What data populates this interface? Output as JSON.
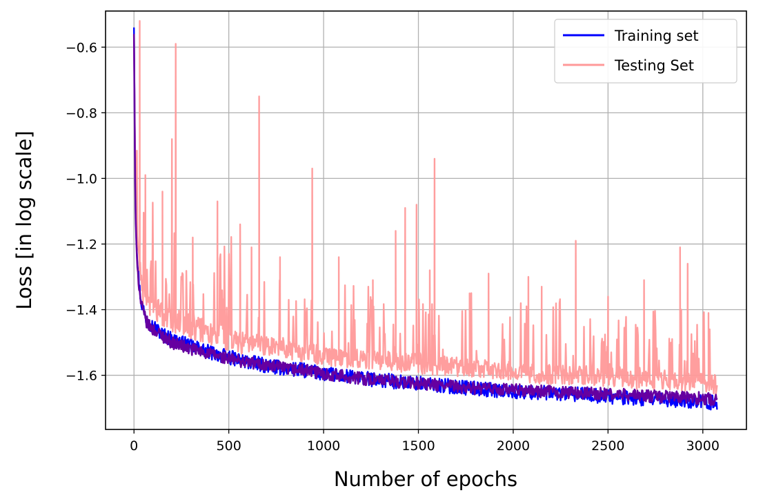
{
  "chart_data": {
    "type": "line",
    "title": "",
    "xlabel": "Number of epochs",
    "ylabel": "Loss [in log scale]",
    "xlim": [
      -150,
      3230
    ],
    "ylim": [
      -1.765,
      -0.49
    ],
    "x_ticks": [
      0,
      500,
      1000,
      1500,
      2000,
      2500,
      3000
    ],
    "y_ticks": [
      -0.6,
      -0.8,
      -1.0,
      -1.2,
      -1.4,
      -1.6
    ],
    "x_tick_labels": [
      "0",
      "500",
      "1000",
      "1500",
      "2000",
      "2500",
      "3000"
    ],
    "y_tick_labels": [
      "−0.6",
      "−0.8",
      "−1.0",
      "−1.2",
      "−1.4",
      "−1.6"
    ],
    "grid": true,
    "legend_position": "top-right",
    "epochs": [
      0,
      3075
    ],
    "series": [
      {
        "name": "Training set",
        "color": "#0000ff",
        "x": [
          0,
          5,
          10,
          20,
          30,
          40,
          60,
          80,
          100,
          150,
          200,
          300,
          400,
          500,
          600,
          700,
          800,
          900,
          1000,
          1200,
          1400,
          1600,
          1800,
          2000,
          2200,
          2400,
          2600,
          2800,
          3000,
          3075
        ],
        "y": [
          -0.54,
          -0.95,
          -1.15,
          -1.27,
          -1.34,
          -1.38,
          -1.42,
          -1.44,
          -1.45,
          -1.475,
          -1.49,
          -1.51,
          -1.53,
          -1.545,
          -1.56,
          -1.57,
          -1.58,
          -1.585,
          -1.595,
          -1.61,
          -1.62,
          -1.63,
          -1.64,
          -1.65,
          -1.655,
          -1.66,
          -1.67,
          -1.675,
          -1.68,
          -1.685
        ]
      },
      {
        "name": "Testing Set",
        "color": "#ff9999",
        "x": [
          0,
          5,
          10,
          20,
          30,
          40,
          60,
          80,
          100,
          150,
          200,
          300,
          400,
          500,
          600,
          700,
          800,
          900,
          1000,
          1200,
          1400,
          1600,
          1800,
          2000,
          2200,
          2400,
          2600,
          2800,
          3000,
          3075
        ],
        "y": [
          -0.58,
          -0.9,
          -1.1,
          -1.22,
          -1.28,
          -1.33,
          -1.36,
          -1.38,
          -1.39,
          -1.41,
          -1.43,
          -1.45,
          -1.47,
          -1.49,
          -1.5,
          -1.51,
          -1.52,
          -1.53,
          -1.54,
          -1.55,
          -1.56,
          -1.57,
          -1.58,
          -1.59,
          -1.6,
          -1.6,
          -1.61,
          -1.62,
          -1.62,
          -1.63
        ],
        "spikes": [
          {
            "x": 30,
            "y": -0.52
          },
          {
            "x": 60,
            "y": -0.99
          },
          {
            "x": 150,
            "y": -1.04
          },
          {
            "x": 200,
            "y": -0.88
          },
          {
            "x": 220,
            "y": -0.59
          },
          {
            "x": 310,
            "y": -1.18
          },
          {
            "x": 440,
            "y": -1.07
          },
          {
            "x": 560,
            "y": -1.14
          },
          {
            "x": 620,
            "y": -1.21
          },
          {
            "x": 660,
            "y": -0.75
          },
          {
            "x": 770,
            "y": -1.24
          },
          {
            "x": 940,
            "y": -0.97
          },
          {
            "x": 1080,
            "y": -1.24
          },
          {
            "x": 1260,
            "y": -1.31
          },
          {
            "x": 1380,
            "y": -1.16
          },
          {
            "x": 1430,
            "y": -1.09
          },
          {
            "x": 1490,
            "y": -1.08
          },
          {
            "x": 1560,
            "y": -1.28
          },
          {
            "x": 1585,
            "y": -0.94
          },
          {
            "x": 1770,
            "y": -1.35
          },
          {
            "x": 1870,
            "y": -1.29
          },
          {
            "x": 2080,
            "y": -1.3
          },
          {
            "x": 2150,
            "y": -1.33
          },
          {
            "x": 2330,
            "y": -1.19
          },
          {
            "x": 2500,
            "y": -1.36
          },
          {
            "x": 2690,
            "y": -1.31
          },
          {
            "x": 2880,
            "y": -1.21
          },
          {
            "x": 2920,
            "y": -1.26
          },
          {
            "x": 3030,
            "y": -1.41
          }
        ]
      },
      {
        "name": "",
        "color": "#6600a0",
        "x": [
          0,
          5,
          10,
          20,
          30,
          40,
          60,
          80,
          100,
          150,
          200,
          300,
          400,
          500,
          600,
          700,
          800,
          900,
          1000,
          1200,
          1400,
          1600,
          1800,
          2000,
          2200,
          2400,
          2600,
          2800,
          3000,
          3075
        ],
        "y": [
          -0.56,
          -0.97,
          -1.16,
          -1.28,
          -1.35,
          -1.39,
          -1.43,
          -1.45,
          -1.46,
          -1.48,
          -1.5,
          -1.52,
          -1.535,
          -1.55,
          -1.56,
          -1.57,
          -1.58,
          -1.585,
          -1.595,
          -1.61,
          -1.62,
          -1.63,
          -1.64,
          -1.645,
          -1.65,
          -1.655,
          -1.66,
          -1.665,
          -1.67,
          -1.675
        ]
      }
    ]
  }
}
